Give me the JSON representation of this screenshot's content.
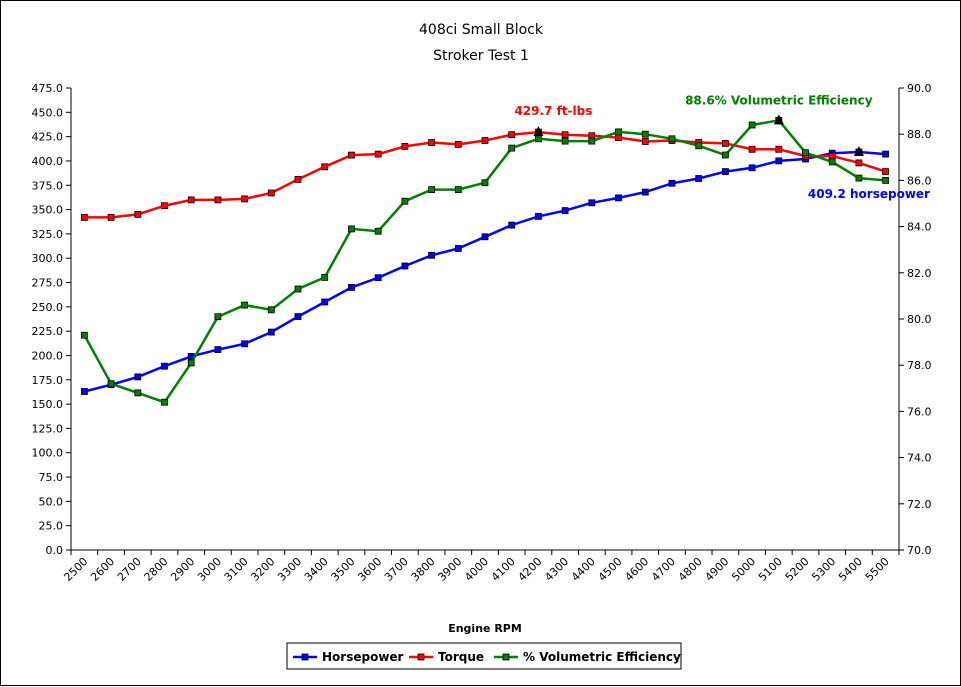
{
  "chart_data": {
    "type": "line",
    "title": "408ci Small Block",
    "subtitle": "Stroker Test 1",
    "xlabel": "Engine RPM",
    "x": [
      2500,
      2600,
      2700,
      2800,
      2900,
      3000,
      3100,
      3200,
      3300,
      3400,
      3500,
      3600,
      3700,
      3800,
      3900,
      4000,
      4100,
      4200,
      4300,
      4400,
      4500,
      4600,
      4700,
      4800,
      4900,
      5000,
      5100,
      5200,
      5300,
      5400,
      5500
    ],
    "x_tick_labels": [
      "2500",
      "2600",
      "2700",
      "2800",
      "2900",
      "3000",
      "3100",
      "3200",
      "3300",
      "3400",
      "3500",
      "3600",
      "3700",
      "3800",
      "3900",
      "4000",
      "4100",
      "4200",
      "4300",
      "4400",
      "4500",
      "4600",
      "4700",
      "4800",
      "4900",
      "5000",
      "5100",
      "5200",
      "5300",
      "5400",
      "5500"
    ],
    "y_left": {
      "lim": [
        0,
        475
      ],
      "ticks": [
        "0.0",
        "25.0",
        "50.0",
        "75.0",
        "100.0",
        "125.0",
        "150.0",
        "175.0",
        "200.0",
        "225.0",
        "250.0",
        "275.0",
        "300.0",
        "325.0",
        "350.0",
        "375.0",
        "400.0",
        "425.0",
        "450.0",
        "475.0"
      ]
    },
    "y_right": {
      "lim": [
        70,
        90
      ],
      "ticks": [
        "70.0",
        "72.0",
        "74.0",
        "76.0",
        "78.0",
        "80.0",
        "82.0",
        "84.0",
        "86.0",
        "88.0",
        "90.0"
      ]
    },
    "grid": false,
    "legend_position": "bottom-center",
    "series": [
      {
        "name": "Horsepower",
        "axis": "left",
        "color": "#0000ff",
        "values": [
          163,
          170,
          178,
          189,
          199,
          206,
          212,
          224,
          240,
          255,
          270,
          280,
          292,
          303,
          310,
          322,
          334,
          343,
          349,
          357,
          362,
          368,
          377,
          382,
          389,
          393,
          400,
          402,
          408,
          409.2,
          407
        ]
      },
      {
        "name": "Torque",
        "axis": "left",
        "color": "#ff0000",
        "values": [
          342,
          342,
          345,
          354,
          360,
          360,
          361,
          367,
          381,
          394,
          406,
          407,
          415,
          419,
          417,
          421,
          427,
          429.7,
          427,
          426,
          424,
          420,
          421,
          419,
          418,
          412,
          412,
          405,
          405,
          398,
          389
        ]
      },
      {
        "name": "% Volumetric Efficiency",
        "axis": "right",
        "color": "#008000",
        "values": [
          79.3,
          77.2,
          76.8,
          76.4,
          78.1,
          80.1,
          80.6,
          80.4,
          81.3,
          81.8,
          83.9,
          83.8,
          85.1,
          85.6,
          85.6,
          85.9,
          87.4,
          87.8,
          87.7,
          87.7,
          88.1,
          88.0,
          87.8,
          87.5,
          87.1,
          88.4,
          88.6,
          87.2,
          86.8,
          86.1,
          86.0
        ]
      }
    ],
    "annotations": [
      {
        "text": "429.7 ft-lbs",
        "color": "#ff0000",
        "x": 4200,
        "value": 429.7,
        "axis": "left"
      },
      {
        "text": "88.6% Volumetric Efficiency",
        "color": "#008000",
        "x": 5100,
        "value": 88.6,
        "axis": "right"
      },
      {
        "text": "409.2 horsepower",
        "color": "#0000ff",
        "x": 5400,
        "value": 409.2,
        "axis": "left"
      }
    ]
  }
}
